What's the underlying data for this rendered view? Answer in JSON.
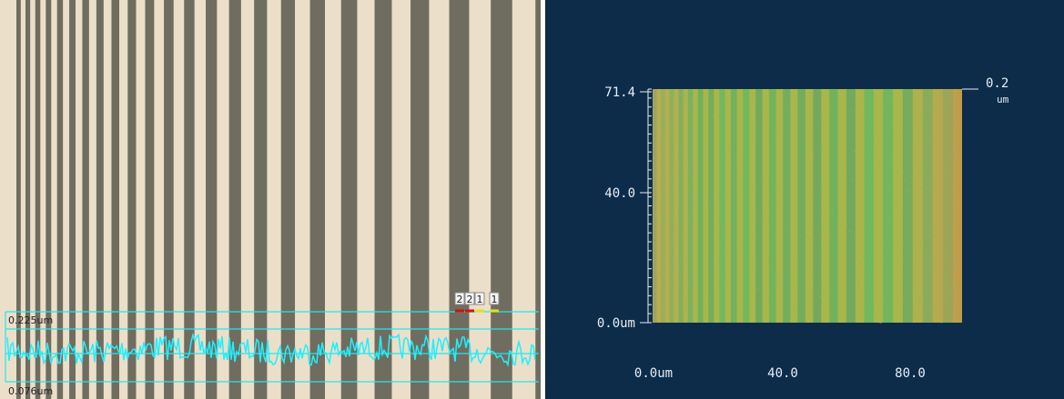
{
  "left_image": {
    "scale_top": "0.225um",
    "scale_bottom": "0.076um",
    "cursor_labels": [
      "2",
      "2",
      "1",
      "1"
    ]
  },
  "right_image": {
    "y_labels": [
      "71.4",
      "40.0",
      "0.0um"
    ],
    "x_labels": [
      "0.0um",
      "40.0",
      "80.0"
    ],
    "z_label": "0.2",
    "z_unit": "um"
  }
}
